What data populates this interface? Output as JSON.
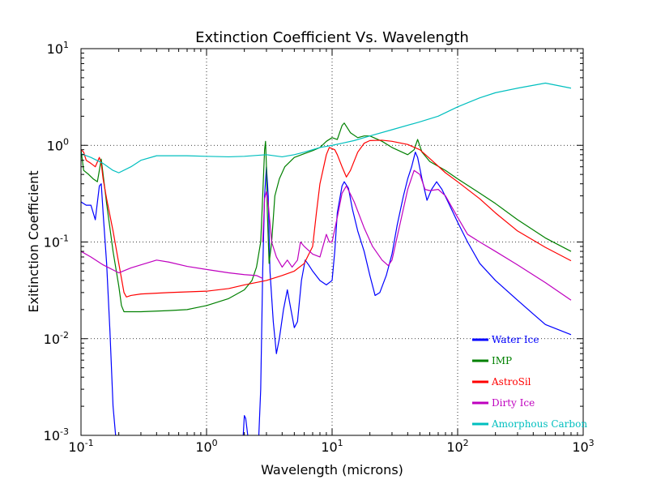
{
  "chart_data": {
    "type": "line",
    "title": "Extinction Coefficient Vs. Wavelength",
    "xlabel": "Wavelength (microns)",
    "ylabel": "Exitinction Coefficient",
    "x_scale": "log",
    "y_scale": "log",
    "xlim": [
      0.1,
      1000
    ],
    "ylim": [
      0.001,
      10
    ],
    "grid": true,
    "legend_position": "lower-right",
    "x_ticks": [
      {
        "value": 0.1,
        "base": "10",
        "exp": "-1"
      },
      {
        "value": 1,
        "base": "10",
        "exp": "0"
      },
      {
        "value": 10,
        "base": "10",
        "exp": "1"
      },
      {
        "value": 100,
        "base": "10",
        "exp": "2"
      },
      {
        "value": 1000,
        "base": "10",
        "exp": "3"
      }
    ],
    "y_ticks": [
      {
        "value": 0.001,
        "base": "10",
        "exp": "-3"
      },
      {
        "value": 0.01,
        "base": "10",
        "exp": "-2"
      },
      {
        "value": 0.1,
        "base": "10",
        "exp": "-1"
      },
      {
        "value": 1,
        "base": "10",
        "exp": "0"
      },
      {
        "value": 10,
        "base": "10",
        "exp": "1"
      }
    ],
    "series": [
      {
        "name": "Water Ice",
        "color": "#0000ff",
        "segments": [
          [
            [
              0.1,
              0.26
            ],
            [
              0.11,
              0.24
            ],
            [
              0.12,
              0.24
            ],
            [
              0.13,
              0.17
            ],
            [
              0.14,
              0.38
            ],
            [
              0.145,
              0.4
            ],
            [
              0.15,
              0.2
            ],
            [
              0.16,
              0.06
            ],
            [
              0.17,
              0.012
            ],
            [
              0.18,
              0.002
            ],
            [
              0.19,
              0.0009
            ]
          ],
          [
            [
              1.95,
              0.0009
            ],
            [
              2.0,
              0.0016
            ],
            [
              2.05,
              0.0015
            ],
            [
              2.15,
              0.0009
            ]
          ],
          [
            [
              2.6,
              0.0009
            ],
            [
              2.7,
              0.003
            ],
            [
              2.8,
              0.05
            ],
            [
              2.9,
              0.3
            ],
            [
              3.0,
              0.6
            ],
            [
              3.1,
              0.3
            ],
            [
              3.2,
              0.05
            ],
            [
              3.4,
              0.015
            ],
            [
              3.6,
              0.007
            ],
            [
              3.8,
              0.01
            ],
            [
              4.1,
              0.02
            ],
            [
              4.4,
              0.032
            ],
            [
              4.7,
              0.02
            ],
            [
              5.0,
              0.013
            ],
            [
              5.3,
              0.015
            ],
            [
              5.7,
              0.04
            ],
            [
              6.1,
              0.065
            ],
            [
              6.5,
              0.058
            ],
            [
              7.0,
              0.05
            ],
            [
              8.0,
              0.04
            ],
            [
              9.0,
              0.036
            ],
            [
              10.0,
              0.04
            ],
            [
              10.5,
              0.08
            ],
            [
              11.0,
              0.2
            ],
            [
              12.0,
              0.38
            ],
            [
              12.5,
              0.42
            ],
            [
              13.5,
              0.36
            ],
            [
              14.5,
              0.22
            ],
            [
              16.0,
              0.13
            ],
            [
              18.0,
              0.08
            ],
            [
              20.0,
              0.045
            ],
            [
              22.0,
              0.028
            ],
            [
              24.0,
              0.03
            ],
            [
              27.0,
              0.045
            ],
            [
              30.0,
              0.075
            ],
            [
              33.0,
              0.15
            ],
            [
              37.0,
              0.3
            ],
            [
              40.0,
              0.45
            ],
            [
              43.0,
              0.6
            ],
            [
              46.0,
              0.85
            ],
            [
              48.0,
              0.75
            ],
            [
              52.0,
              0.45
            ],
            [
              57.0,
              0.27
            ],
            [
              62.0,
              0.35
            ],
            [
              68.0,
              0.42
            ],
            [
              75.0,
              0.35
            ],
            [
              85.0,
              0.25
            ],
            [
              100.0,
              0.16
            ],
            [
              120.0,
              0.1
            ],
            [
              150.0,
              0.06
            ],
            [
              200.0,
              0.04
            ],
            [
              300.0,
              0.025
            ],
            [
              400.0,
              0.018
            ],
            [
              500.0,
              0.014
            ],
            [
              800.0,
              0.011
            ]
          ]
        ]
      },
      {
        "name": "IMP",
        "color": "#008000",
        "segments": [
          [
            [
              0.1,
              0.9
            ],
            [
              0.105,
              0.55
            ],
            [
              0.115,
              0.5
            ],
            [
              0.125,
              0.45
            ],
            [
              0.135,
              0.42
            ],
            [
              0.14,
              0.55
            ],
            [
              0.145,
              0.72
            ],
            [
              0.15,
              0.5
            ],
            [
              0.16,
              0.25
            ],
            [
              0.18,
              0.08
            ],
            [
              0.2,
              0.035
            ],
            [
              0.21,
              0.022
            ],
            [
              0.22,
              0.019
            ],
            [
              0.25,
              0.019
            ],
            [
              0.3,
              0.019
            ],
            [
              0.5,
              0.0195
            ],
            [
              0.7,
              0.02
            ],
            [
              1.0,
              0.022
            ],
            [
              1.5,
              0.026
            ],
            [
              2.0,
              0.032
            ],
            [
              2.3,
              0.04
            ],
            [
              2.5,
              0.055
            ],
            [
              2.7,
              0.1
            ],
            [
              2.8,
              0.3
            ],
            [
              2.9,
              0.9
            ],
            [
              2.95,
              1.1
            ],
            [
              3.0,
              0.6
            ],
            [
              3.05,
              0.2
            ],
            [
              3.15,
              0.06
            ],
            [
              3.3,
              0.1
            ],
            [
              3.5,
              0.3
            ],
            [
              3.8,
              0.45
            ],
            [
              4.2,
              0.6
            ],
            [
              5.0,
              0.75
            ],
            [
              6.0,
              0.82
            ],
            [
              7.0,
              0.88
            ],
            [
              8.0,
              0.95
            ],
            [
              9.0,
              1.1
            ],
            [
              10.0,
              1.2
            ],
            [
              11.0,
              1.15
            ],
            [
              12.0,
              1.6
            ],
            [
              12.5,
              1.7
            ],
            [
              14.0,
              1.35
            ],
            [
              16.0,
              1.2
            ],
            [
              18.0,
              1.25
            ],
            [
              20.0,
              1.25
            ],
            [
              25.0,
              1.1
            ],
            [
              30.0,
              0.95
            ],
            [
              40.0,
              0.8
            ],
            [
              45.0,
              0.9
            ],
            [
              48.0,
              1.15
            ],
            [
              52.0,
              0.85
            ],
            [
              60.0,
              0.68
            ],
            [
              80.0,
              0.55
            ],
            [
              100.0,
              0.45
            ],
            [
              150.0,
              0.32
            ],
            [
              200.0,
              0.25
            ],
            [
              300.0,
              0.17
            ],
            [
              500.0,
              0.11
            ],
            [
              800.0,
              0.08
            ]
          ]
        ]
      },
      {
        "name": "AstroSil",
        "color": "#ff0000",
        "segments": [
          [
            [
              0.1,
              0.9
            ],
            [
              0.105,
              0.85
            ],
            [
              0.11,
              0.7
            ],
            [
              0.12,
              0.65
            ],
            [
              0.13,
              0.6
            ],
            [
              0.14,
              0.75
            ],
            [
              0.145,
              0.65
            ],
            [
              0.15,
              0.45
            ],
            [
              0.16,
              0.28
            ],
            [
              0.18,
              0.13
            ],
            [
              0.2,
              0.06
            ],
            [
              0.22,
              0.03
            ],
            [
              0.23,
              0.027
            ],
            [
              0.25,
              0.028
            ],
            [
              0.3,
              0.029
            ],
            [
              0.5,
              0.03
            ],
            [
              1.0,
              0.031
            ],
            [
              1.5,
              0.033
            ],
            [
              2.0,
              0.036
            ],
            [
              3.0,
              0.04
            ],
            [
              4.0,
              0.045
            ],
            [
              5.0,
              0.05
            ],
            [
              6.0,
              0.06
            ],
            [
              7.0,
              0.09
            ],
            [
              7.5,
              0.2
            ],
            [
              8.0,
              0.4
            ],
            [
              9.0,
              0.8
            ],
            [
              9.5,
              0.95
            ],
            [
              10.5,
              0.9
            ],
            [
              11.0,
              0.8
            ],
            [
              12.0,
              0.6
            ],
            [
              13.0,
              0.47
            ],
            [
              14.0,
              0.55
            ],
            [
              16.0,
              0.85
            ],
            [
              18.0,
              1.05
            ],
            [
              20.0,
              1.12
            ],
            [
              25.0,
              1.13
            ],
            [
              30.0,
              1.1
            ],
            [
              40.0,
              1.02
            ],
            [
              50.0,
              0.9
            ],
            [
              60.0,
              0.73
            ],
            [
              80.0,
              0.52
            ],
            [
              100.0,
              0.42
            ],
            [
              150.0,
              0.28
            ],
            [
              200.0,
              0.2
            ],
            [
              300.0,
              0.13
            ],
            [
              500.0,
              0.088
            ],
            [
              800.0,
              0.064
            ]
          ]
        ]
      },
      {
        "name": "Dirty Ice",
        "color": "#bf00bf",
        "segments": [
          [
            [
              0.1,
              0.08
            ],
            [
              0.12,
              0.07
            ],
            [
              0.15,
              0.058
            ],
            [
              0.2,
              0.048
            ],
            [
              0.25,
              0.054
            ],
            [
              0.3,
              0.058
            ],
            [
              0.4,
              0.065
            ],
            [
              0.5,
              0.062
            ],
            [
              0.7,
              0.056
            ],
            [
              1.0,
              0.052
            ],
            [
              1.5,
              0.048
            ],
            [
              2.0,
              0.046
            ],
            [
              2.5,
              0.045
            ],
            [
              2.8,
              0.042
            ]
          ],
          [
            [
              2.8,
              0.1
            ],
            [
              2.9,
              0.28
            ],
            [
              3.0,
              0.33
            ],
            [
              3.1,
              0.25
            ],
            [
              3.3,
              0.1
            ],
            [
              3.6,
              0.07
            ],
            [
              4.0,
              0.055
            ],
            [
              4.4,
              0.065
            ],
            [
              4.8,
              0.055
            ],
            [
              5.3,
              0.065
            ],
            [
              5.6,
              0.1
            ],
            [
              6.0,
              0.09
            ],
            [
              7.0,
              0.075
            ],
            [
              8.0,
              0.07
            ],
            [
              9.0,
              0.12
            ],
            [
              9.5,
              0.1
            ],
            [
              10.0,
              0.1
            ],
            [
              11.0,
              0.18
            ],
            [
              12.0,
              0.32
            ],
            [
              13.0,
              0.38
            ],
            [
              15.0,
              0.26
            ],
            [
              18.0,
              0.14
            ],
            [
              21.0,
              0.09
            ],
            [
              25.0,
              0.065
            ],
            [
              28.0,
              0.057
            ],
            [
              30.0,
              0.065
            ],
            [
              35.0,
              0.16
            ],
            [
              40.0,
              0.35
            ],
            [
              45.0,
              0.55
            ],
            [
              50.0,
              0.5
            ],
            [
              55.0,
              0.35
            ],
            [
              60.0,
              0.34
            ],
            [
              70.0,
              0.35
            ],
            [
              80.0,
              0.3
            ],
            [
              100.0,
              0.18
            ],
            [
              120.0,
              0.12
            ],
            [
              150.0,
              0.1
            ],
            [
              200.0,
              0.08
            ],
            [
              300.0,
              0.058
            ],
            [
              500.0,
              0.038
            ],
            [
              800.0,
              0.025
            ]
          ]
        ]
      },
      {
        "name": "Amorphous Carbon",
        "color": "#00bfbf",
        "segments": [
          [
            [
              0.1,
              0.82
            ],
            [
              0.12,
              0.75
            ],
            [
              0.15,
              0.65
            ],
            [
              0.18,
              0.55
            ],
            [
              0.2,
              0.52
            ],
            [
              0.25,
              0.6
            ],
            [
              0.3,
              0.7
            ],
            [
              0.4,
              0.78
            ],
            [
              0.5,
              0.78
            ],
            [
              0.7,
              0.78
            ],
            [
              1.0,
              0.77
            ],
            [
              1.5,
              0.76
            ],
            [
              2.0,
              0.77
            ],
            [
              3.0,
              0.8
            ],
            [
              4.0,
              0.76
            ],
            [
              5.0,
              0.8
            ],
            [
              6.0,
              0.85
            ],
            [
              8.0,
              0.95
            ],
            [
              10.0,
              1.0
            ],
            [
              12.0,
              1.05
            ],
            [
              15.0,
              1.12
            ],
            [
              20.0,
              1.25
            ],
            [
              30.0,
              1.45
            ],
            [
              50.0,
              1.75
            ],
            [
              70.0,
              2.0
            ],
            [
              100.0,
              2.5
            ],
            [
              150.0,
              3.1
            ],
            [
              200.0,
              3.5
            ],
            [
              300.0,
              3.9
            ],
            [
              500.0,
              4.4
            ],
            [
              800.0,
              3.9
            ]
          ]
        ]
      }
    ]
  }
}
